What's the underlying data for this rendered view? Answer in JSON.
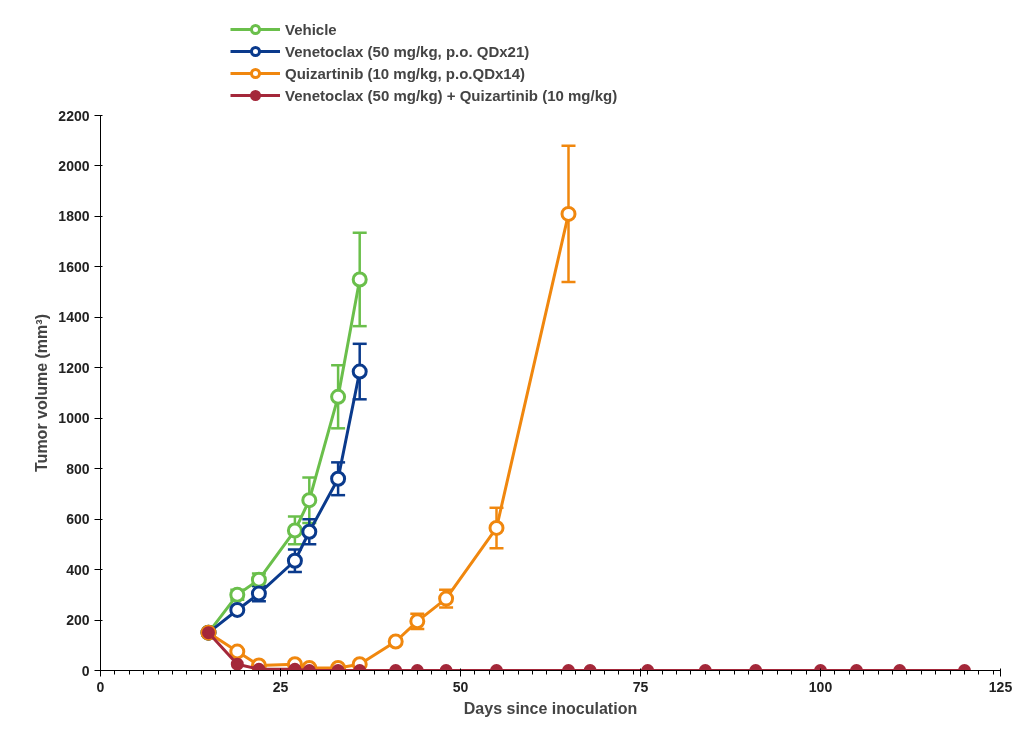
{
  "chart_data": {
    "type": "line",
    "xlabel": "Days since inoculation",
    "ylabel": "Tumor volume (mm³)",
    "xlim": [
      0,
      125
    ],
    "xticks": [
      0,
      25,
      50,
      75,
      100,
      125
    ],
    "ylim": [
      0,
      2200
    ],
    "yticks": [
      0,
      200,
      400,
      600,
      800,
      1000,
      1200,
      1400,
      1600,
      1800,
      2000,
      2200
    ],
    "grid": false,
    "legend": "top",
    "marker": "circle",
    "series": [
      {
        "name": "Vehicle",
        "color": "#6abf4b",
        "x": [
          15,
          19,
          22,
          27,
          29,
          33,
          36
        ],
        "values": [
          150,
          300,
          360,
          555,
          675,
          1085,
          1550
        ],
        "errors": [
          null,
          20,
          25,
          55,
          90,
          125,
          185
        ]
      },
      {
        "name": "Venetoclax (50 mg/kg, p.o. QDx21)",
        "color": "#0a3a8c",
        "x": [
          15,
          19,
          22,
          27,
          29,
          33,
          36
        ],
        "values": [
          150,
          240,
          305,
          435,
          550,
          760,
          1185
        ],
        "errors": [
          null,
          null,
          30,
          45,
          50,
          65,
          110
        ]
      },
      {
        "name": "Quizartinib (10 mg/kg, p.o.QDx14)",
        "color": "#f0870e",
        "x": [
          15,
          19,
          22,
          27,
          29,
          33,
          36,
          41,
          44,
          48,
          55,
          65
        ],
        "values": [
          150,
          75,
          20,
          25,
          10,
          10,
          25,
          115,
          195,
          285,
          565,
          1810
        ],
        "errors": [
          null,
          null,
          null,
          null,
          null,
          null,
          null,
          null,
          30,
          35,
          80,
          270
        ]
      },
      {
        "name": "Venetoclax (50 mg/kg) + Quizartinib (10 mg/kg)",
        "color": "#a4283a",
        "x": [
          15,
          19,
          22,
          27,
          29,
          33,
          36,
          41,
          44,
          48,
          55,
          65,
          68,
          76,
          84,
          91,
          100,
          105,
          111,
          120
        ],
        "values": [
          150,
          25,
          5,
          5,
          0,
          0,
          0,
          0,
          0,
          0,
          0,
          0,
          0,
          0,
          0,
          0,
          0,
          0,
          0,
          0
        ]
      }
    ]
  }
}
